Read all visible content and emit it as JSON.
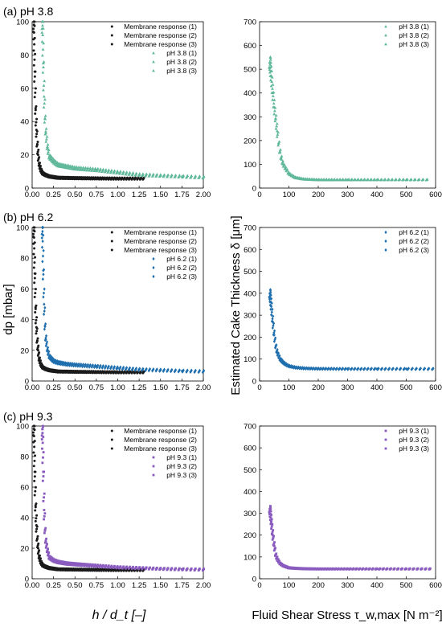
{
  "figure": {
    "panel_labels": [
      "(a) pH 3.8",
      "(b) pH 6.2",
      "(c) pH 9.3"
    ],
    "left_ylabel": "dp [mbar]",
    "right_ylabel": "Estimated Cake Thickness δ [μm]",
    "left_xlabel": "h / d_t [–]",
    "right_xlabel": "Fluid Shear Stress τ_w,max [N m⁻²]",
    "colors": {
      "membrane": "#1a1a1a",
      "ph38": "#5fb89a",
      "ph62": "#1f6fae",
      "ph93": "#8a5bbf"
    }
  },
  "chart_data": [
    {
      "type": "scatter",
      "panel": "a-left",
      "xlim": [
        0,
        2.0
      ],
      "ylim": [
        0,
        100
      ],
      "xticks": [
        "0.00",
        "0.25",
        "0.50",
        "0.75",
        "1.00",
        "1.25",
        "1.50",
        "1.75",
        "2.00"
      ],
      "yticks": [
        "0",
        "20",
        "40",
        "60",
        "80",
        "100"
      ],
      "legend": [
        "Membrane response (1)",
        "Membrane response (2)",
        "Membrane response (3)",
        "pH 3.8 (1)",
        "pH 3.8 (2)",
        "pH 3.8 (3)"
      ],
      "legend_position": "top-right",
      "series": [
        {
          "name": "Membrane response (1)",
          "kind": "membrane",
          "x": [
            0.02,
            0.03,
            0.04,
            0.05,
            0.06,
            0.07,
            0.08,
            0.1,
            0.12,
            0.15,
            0.2,
            0.3,
            0.5,
            0.8,
            1.0,
            1.3
          ],
          "y": [
            100,
            70,
            48,
            35,
            26,
            20,
            15,
            11,
            9,
            8,
            7,
            6.2,
            6,
            5.8,
            5.7,
            5.7
          ]
        },
        {
          "name": "pH 3.8 (1)",
          "kind": "sample",
          "x": [
            0.12,
            0.13,
            0.14,
            0.15,
            0.16,
            0.18,
            0.2,
            0.25,
            0.3,
            0.4,
            0.5,
            0.75,
            1.0,
            1.25,
            1.5,
            1.75,
            2.0
          ],
          "y": [
            100,
            75,
            55,
            42,
            33,
            24,
            19,
            16,
            14,
            13,
            12,
            11,
            9.5,
            8,
            7.5,
            7,
            6.5
          ]
        }
      ]
    },
    {
      "type": "scatter",
      "panel": "a-right",
      "xlim": [
        0,
        600
      ],
      "ylim": [
        0,
        700
      ],
      "xticks": [
        "0",
        "100",
        "200",
        "300",
        "400",
        "500",
        "600"
      ],
      "yticks": [
        "0",
        "100",
        "200",
        "300",
        "400",
        "500",
        "600",
        "700"
      ],
      "legend": [
        "pH 3.8 (1)",
        "pH 3.8 (2)",
        "pH 3.8 (3)"
      ],
      "legend_position": "top-right",
      "series": [
        {
          "name": "pH 3.8 (1)",
          "kind": "sample",
          "x": [
            35,
            40,
            45,
            50,
            55,
            60,
            65,
            70,
            75,
            80,
            90,
            100,
            120,
            150,
            200,
            300,
            400,
            500,
            570
          ],
          "y": [
            530,
            470,
            400,
            340,
            290,
            240,
            190,
            150,
            120,
            100,
            80,
            60,
            45,
            38,
            35,
            35,
            35,
            35,
            35
          ]
        }
      ]
    },
    {
      "type": "scatter",
      "panel": "b-left",
      "xlim": [
        0,
        2.0
      ],
      "ylim": [
        0,
        100
      ],
      "xticks": [
        "0.00",
        "0.25",
        "0.50",
        "0.75",
        "1.00",
        "1.25",
        "1.50",
        "1.75",
        "2.00"
      ],
      "yticks": [
        "0",
        "20",
        "40",
        "60",
        "80",
        "100"
      ],
      "legend": [
        "Membrane response (1)",
        "Membrane response (2)",
        "Membrane response (3)",
        "pH 6.2 (1)",
        "pH 6.2 (2)",
        "pH 6.2 (3)"
      ],
      "legend_position": "top-right",
      "series": [
        {
          "name": "Membrane response (1)",
          "kind": "membrane",
          "x": [
            0.02,
            0.03,
            0.04,
            0.05,
            0.06,
            0.07,
            0.08,
            0.1,
            0.12,
            0.15,
            0.2,
            0.3,
            0.5,
            0.8,
            1.0,
            1.3
          ],
          "y": [
            100,
            70,
            48,
            35,
            26,
            20,
            15,
            11,
            9,
            8,
            7,
            6.2,
            6,
            5.8,
            5.7,
            5.7
          ]
        },
        {
          "name": "pH 6.2 (1)",
          "kind": "sample",
          "x": [
            0.12,
            0.13,
            0.14,
            0.15,
            0.16,
            0.18,
            0.2,
            0.25,
            0.3,
            0.4,
            0.5,
            0.75,
            1.0,
            1.25,
            1.5,
            1.75,
            2.0
          ],
          "y": [
            100,
            72,
            50,
            36,
            27,
            20,
            16,
            13,
            12,
            11,
            10.5,
            9.5,
            8.5,
            7.5,
            7,
            6.5,
            6.2
          ]
        }
      ]
    },
    {
      "type": "scatter",
      "panel": "b-right",
      "xlim": [
        0,
        600
      ],
      "ylim": [
        0,
        700
      ],
      "xticks": [
        "0",
        "100",
        "200",
        "300",
        "400",
        "500",
        "600"
      ],
      "yticks": [
        "0",
        "100",
        "200",
        "300",
        "400",
        "500",
        "600",
        "700"
      ],
      "legend": [
        "pH 6.2 (1)",
        "pH 6.2 (2)",
        "pH 6.2 (3)"
      ],
      "legend_position": "top-right",
      "series": [
        {
          "name": "pH 6.2 (1)",
          "kind": "sample",
          "x": [
            35,
            40,
            45,
            50,
            55,
            60,
            70,
            80,
            90,
            100,
            120,
            150,
            200,
            300,
            400,
            500,
            590
          ],
          "y": [
            400,
            340,
            270,
            210,
            160,
            130,
            100,
            85,
            75,
            68,
            62,
            58,
            56,
            55,
            55,
            55,
            55
          ]
        }
      ]
    },
    {
      "type": "scatter",
      "panel": "c-left",
      "xlim": [
        0,
        2.0
      ],
      "ylim": [
        0,
        100
      ],
      "xticks": [
        "0.00",
        "0.25",
        "0.50",
        "0.75",
        "1.00",
        "1.25",
        "1.50",
        "1.75",
        "2.00"
      ],
      "yticks": [
        "0",
        "20",
        "40",
        "60",
        "80",
        "100"
      ],
      "legend": [
        "Membrane response (1)",
        "Membrane response (2)",
        "Membrane response (3)",
        "pH 9.3 (1)",
        "pH 9.3 (2)",
        "pH 9.3 (3)"
      ],
      "legend_position": "top-right",
      "series": [
        {
          "name": "Membrane response (1)",
          "kind": "membrane",
          "x": [
            0.02,
            0.03,
            0.04,
            0.05,
            0.06,
            0.07,
            0.08,
            0.1,
            0.12,
            0.15,
            0.2,
            0.3,
            0.5,
            0.8,
            1.0,
            1.3
          ],
          "y": [
            100,
            70,
            48,
            35,
            26,
            20,
            15,
            11,
            9,
            8,
            7,
            6.2,
            6,
            5.8,
            5.7,
            5.7
          ]
        },
        {
          "name": "pH 9.3 (1)",
          "kind": "sample",
          "x": [
            0.12,
            0.13,
            0.14,
            0.15,
            0.16,
            0.18,
            0.2,
            0.25,
            0.3,
            0.4,
            0.5,
            0.75,
            1.0,
            1.25,
            1.5,
            1.75,
            2.0
          ],
          "y": [
            98,
            70,
            45,
            32,
            24,
            18,
            14,
            12,
            11,
            10,
            9.5,
            8.5,
            7.5,
            7,
            6.5,
            6.2,
            6
          ]
        }
      ]
    },
    {
      "type": "scatter",
      "panel": "c-right",
      "xlim": [
        0,
        600
      ],
      "ylim": [
        0,
        700
      ],
      "xticks": [
        "0",
        "100",
        "200",
        "300",
        "400",
        "500",
        "600"
      ],
      "yticks": [
        "0",
        "100",
        "200",
        "300",
        "400",
        "500",
        "600",
        "700"
      ],
      "legend": [
        "pH 9.3 (1)",
        "pH 9.3 (2)",
        "pH 9.3 (3)"
      ],
      "legend_position": "top-right",
      "series": [
        {
          "name": "pH 9.3 (1)",
          "kind": "sample",
          "x": [
            35,
            40,
            45,
            50,
            55,
            60,
            70,
            80,
            90,
            100,
            120,
            150,
            200,
            300,
            400,
            500,
            580
          ],
          "y": [
            320,
            260,
            200,
            150,
            110,
            90,
            70,
            60,
            55,
            50,
            48,
            46,
            45,
            45,
            45,
            45,
            45
          ]
        }
      ]
    }
  ]
}
